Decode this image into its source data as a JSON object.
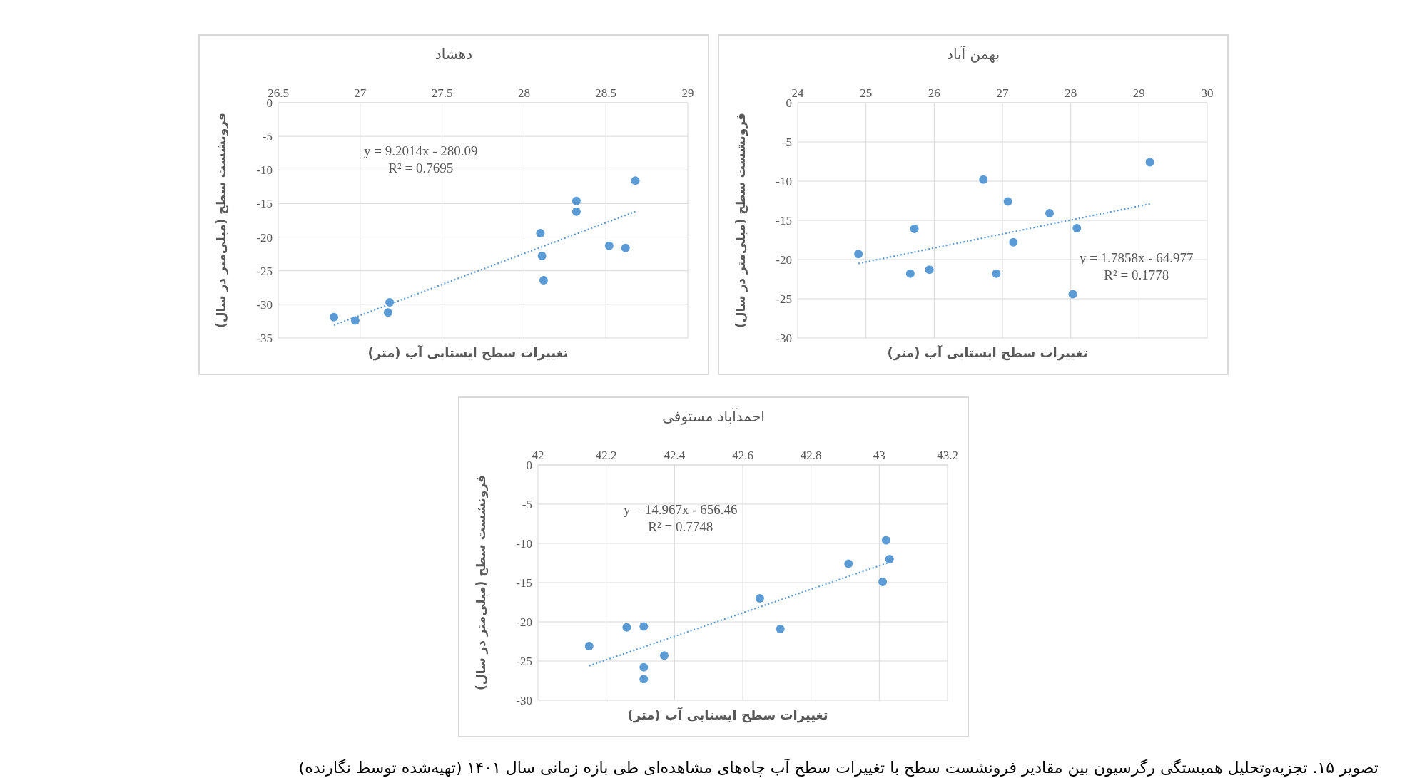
{
  "chart_data": [
    {
      "type": "scatter",
      "title": "دهشاد",
      "xlabel": "تغییرات سطح ایستابی آب (متر)",
      "ylabel": "فرونشست سطح (میلی‌متر در سال)",
      "xlim": [
        26.5,
        29
      ],
      "xticks": [
        26.5,
        27,
        27.5,
        28,
        28.5,
        29
      ],
      "ylim": [
        -35,
        0
      ],
      "yticks": [
        0,
        -5,
        -10,
        -15,
        -20,
        -25,
        -30,
        -35
      ],
      "grid": true,
      "marker": "circle",
      "annotations": [
        "y = 9.2014x - 280.09",
        "R² = 0.7695"
      ],
      "series": [
        {
          "type": "scatter",
          "color": "#5b9bd5",
          "x": [
            26.84,
            26.97,
            27.18,
            27.17,
            28.1,
            28.11,
            28.12,
            28.32,
            28.32,
            28.52,
            28.62,
            28.68
          ],
          "values": [
            -31.9,
            -32.4,
            -29.7,
            -31.2,
            -19.4,
            -22.8,
            -26.4,
            -14.6,
            -16.2,
            -21.3,
            -21.6,
            -11.6
          ]
        },
        {
          "type": "line",
          "color": "#5b9bd5",
          "line_style": "dotted",
          "marker": "none",
          "x": [
            26.84,
            28.68
          ],
          "values": [
            -33.1,
            -16.2
          ]
        }
      ]
    },
    {
      "type": "scatter",
      "title": "بهمن آباد",
      "xlabel": "تغییرات سطح ایستابی آب (متر)",
      "ylabel": "فرونشست سطح (میلی‌متر در سال)",
      "xlim": [
        24,
        30
      ],
      "xticks": [
        24,
        25,
        26,
        27,
        28,
        29,
        30
      ],
      "ylim": [
        -30,
        0
      ],
      "yticks": [
        0,
        -5,
        -10,
        -15,
        -20,
        -25,
        -30
      ],
      "grid": true,
      "marker": "circle",
      "annotations": [
        "y = 1.7858x - 64.977",
        "R² = 0.1778"
      ],
      "series": [
        {
          "type": "scatter",
          "color": "#5b9bd5",
          "x": [
            24.89,
            25.71,
            25.65,
            25.93,
            26.72,
            26.91,
            27.08,
            27.16,
            27.69,
            28.03,
            28.09,
            29.16
          ],
          "values": [
            -19.3,
            -16.1,
            -21.8,
            -21.3,
            -9.8,
            -21.8,
            -12.6,
            -17.8,
            -14.1,
            -24.4,
            -16.0,
            -7.6
          ]
        },
        {
          "type": "line",
          "color": "#5b9bd5",
          "line_style": "dotted",
          "marker": "none",
          "x": [
            24.89,
            29.16
          ],
          "values": [
            -20.5,
            -12.9
          ]
        }
      ]
    },
    {
      "type": "scatter",
      "title": "احمدآباد مستوفی",
      "xlabel": "تغییرات سطح ایستابی آب (متر)",
      "ylabel": "فرونشست سطح (میلی‌متر در سال)",
      "xlim": [
        42,
        43.2
      ],
      "xticks": [
        42,
        42.2,
        42.4,
        42.6,
        42.8,
        43,
        43.2
      ],
      "ylim": [
        -30,
        0
      ],
      "yticks": [
        0,
        -5,
        -10,
        -15,
        -20,
        -25,
        -30
      ],
      "grid": true,
      "marker": "circle",
      "annotations": [
        "y = 14.967x - 656.46",
        "R² = 0.7748",
        "تصویر ۱۵. تجزیه‌وتحلیل همبستگی رگرسیون بین مقادیر فرونشست سطح با تغییرات سطح آب چاه‌های مشاهده‌ای طی بازه زمانی سال ۱۴۰۱ (تهیه‌شده توسط نگارنده)"
      ],
      "series": [
        {
          "type": "scatter",
          "color": "#5b9bd5",
          "x": [
            42.15,
            42.26,
            42.31,
            42.31,
            42.31,
            42.37,
            42.65,
            42.71,
            42.91,
            43.01,
            43.02,
            43.03
          ],
          "values": [
            -23.1,
            -20.7,
            -20.6,
            -25.8,
            -27.3,
            -24.3,
            -17.0,
            -20.9,
            -12.6,
            -14.9,
            -9.6,
            -12.0
          ]
        },
        {
          "type": "line",
          "color": "#5b9bd5",
          "line_style": "dotted",
          "marker": "none",
          "x": [
            42.15,
            43.03
          ],
          "values": [
            -25.6,
            -12.4
          ]
        }
      ]
    }
  ]
}
